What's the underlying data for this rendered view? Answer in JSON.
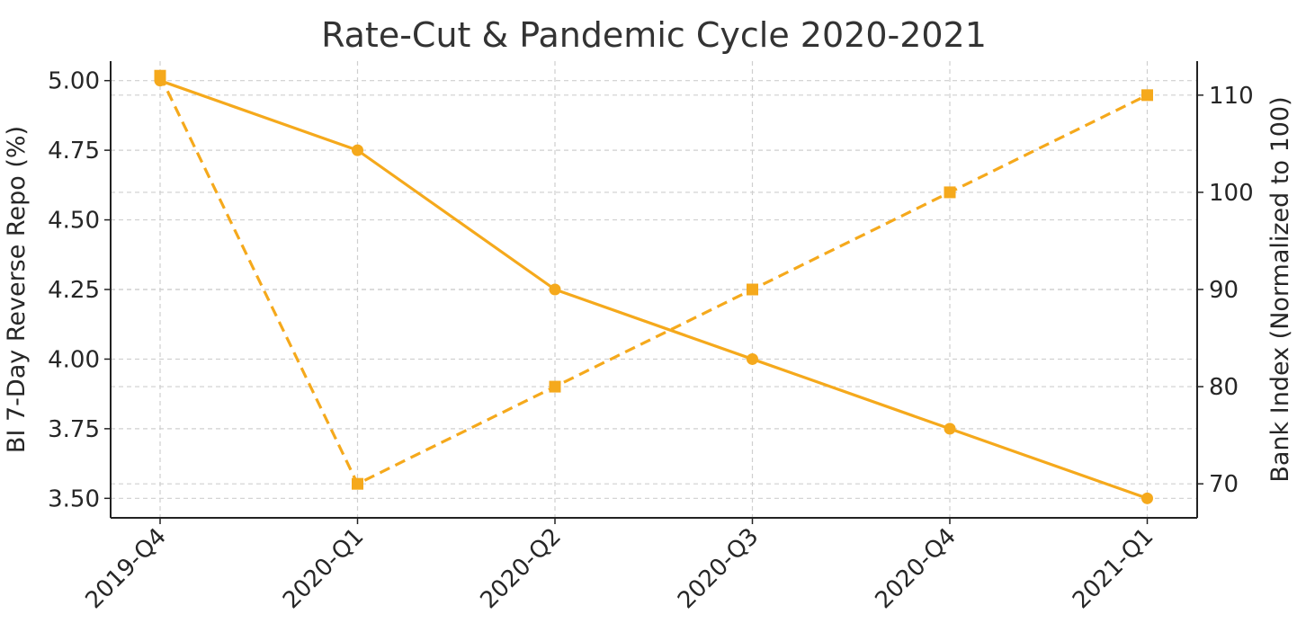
{
  "chart_data": {
    "type": "line",
    "title": "Rate-Cut & Pandemic Cycle 2020-2021",
    "xlabel": "",
    "ylabel": "BI 7-Day Reverse Repo (%)",
    "y2label": "Bank Index (Normalized to 100)",
    "categories": [
      "2019-Q4",
      "2020-Q1",
      "2020-Q2",
      "2020-Q3",
      "2020-Q4",
      "2021-Q1"
    ],
    "ylim": [
      3.43,
      5.07
    ],
    "y2lim": [
      66.5,
      113.5
    ],
    "yticks": [
      "3.50",
      "3.75",
      "4.00",
      "4.25",
      "4.50",
      "4.75",
      "5.00"
    ],
    "y2ticks": [
      "70",
      "80",
      "90",
      "100",
      "110"
    ],
    "grid": true,
    "legend": "none",
    "series": [
      {
        "axis": "left",
        "style": "solid",
        "marker": "circle",
        "color": "#F5A91C",
        "values": [
          5.0,
          4.75,
          4.25,
          4.0,
          3.75,
          3.5
        ]
      },
      {
        "axis": "right",
        "style": "dashed",
        "marker": "square",
        "color": "#F5A91C",
        "values": [
          112,
          70,
          80,
          90,
          100,
          110
        ]
      }
    ]
  }
}
